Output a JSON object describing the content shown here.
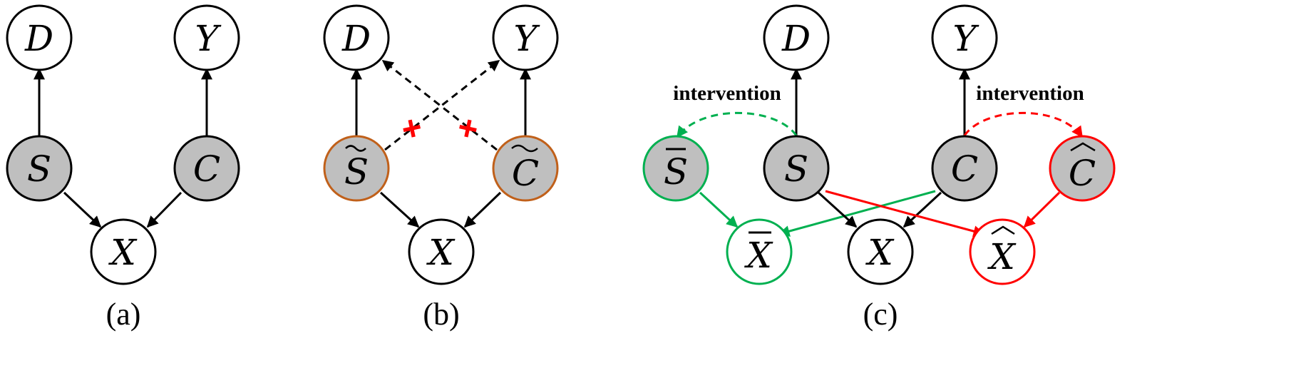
{
  "colors": {
    "stroke": "#000000",
    "gray_fill": "#bfbfbf",
    "white_fill": "#ffffff",
    "orange": "#c0601a",
    "green": "#00b050",
    "red": "#ff0000"
  },
  "panels": {
    "a": {
      "label": "(a)",
      "nodes": {
        "D": "D",
        "Y": "Y",
        "S": "S",
        "C": "C",
        "X": "X"
      }
    },
    "b": {
      "label": "(b)",
      "nodes": {
        "D": "D",
        "Y": "Y",
        "S": "S",
        "C": "C",
        "X": "X"
      },
      "cut_marks": [
        "+",
        "+"
      ]
    },
    "c": {
      "label": "(c)",
      "nodes": {
        "D": "D",
        "Y": "Y",
        "S_bar": "S",
        "S": "S",
        "C": "C",
        "C_hat": "C",
        "X_bar": "X",
        "X": "X",
        "X_hat": "X"
      },
      "annotations": {
        "left": "intervention",
        "right": "intervention"
      }
    }
  }
}
